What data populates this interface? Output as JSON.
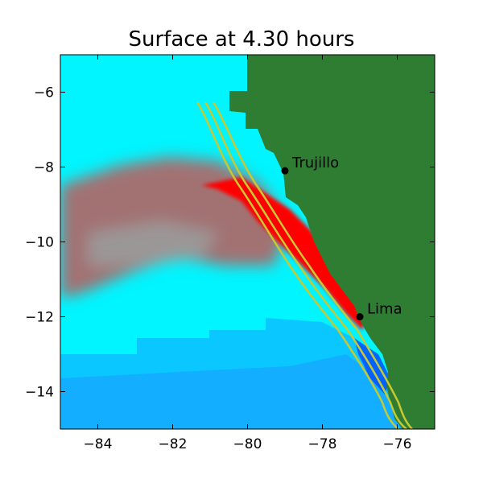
{
  "title": "Surface at 4.30 hours",
  "map": {
    "xlim": [
      -85,
      -75
    ],
    "ylim": [
      -15,
      -5
    ],
    "x_ticks": [
      -84,
      -82,
      -80,
      -78,
      -76
    ],
    "y_ticks": [
      -6,
      -8,
      -10,
      -12,
      -14
    ],
    "x_tick_labels": [
      "−84",
      "−82",
      "−80",
      "−78",
      "−76"
    ],
    "y_tick_labels": [
      "−6",
      "−8",
      "−10",
      "−12",
      "−14"
    ],
    "colors": {
      "land": "#2f7d32",
      "sea": "#00ffff",
      "deep_blue": "#1a8cff",
      "wave_high": "#ff0000",
      "wave_mid": "#b05a5a",
      "contour": "#c8c832"
    },
    "places": [
      {
        "name": "Trujillo",
        "lon": -79.0,
        "lat": -8.1
      },
      {
        "name": "Lima",
        "lon": -77.0,
        "lat": -12.0
      }
    ]
  }
}
